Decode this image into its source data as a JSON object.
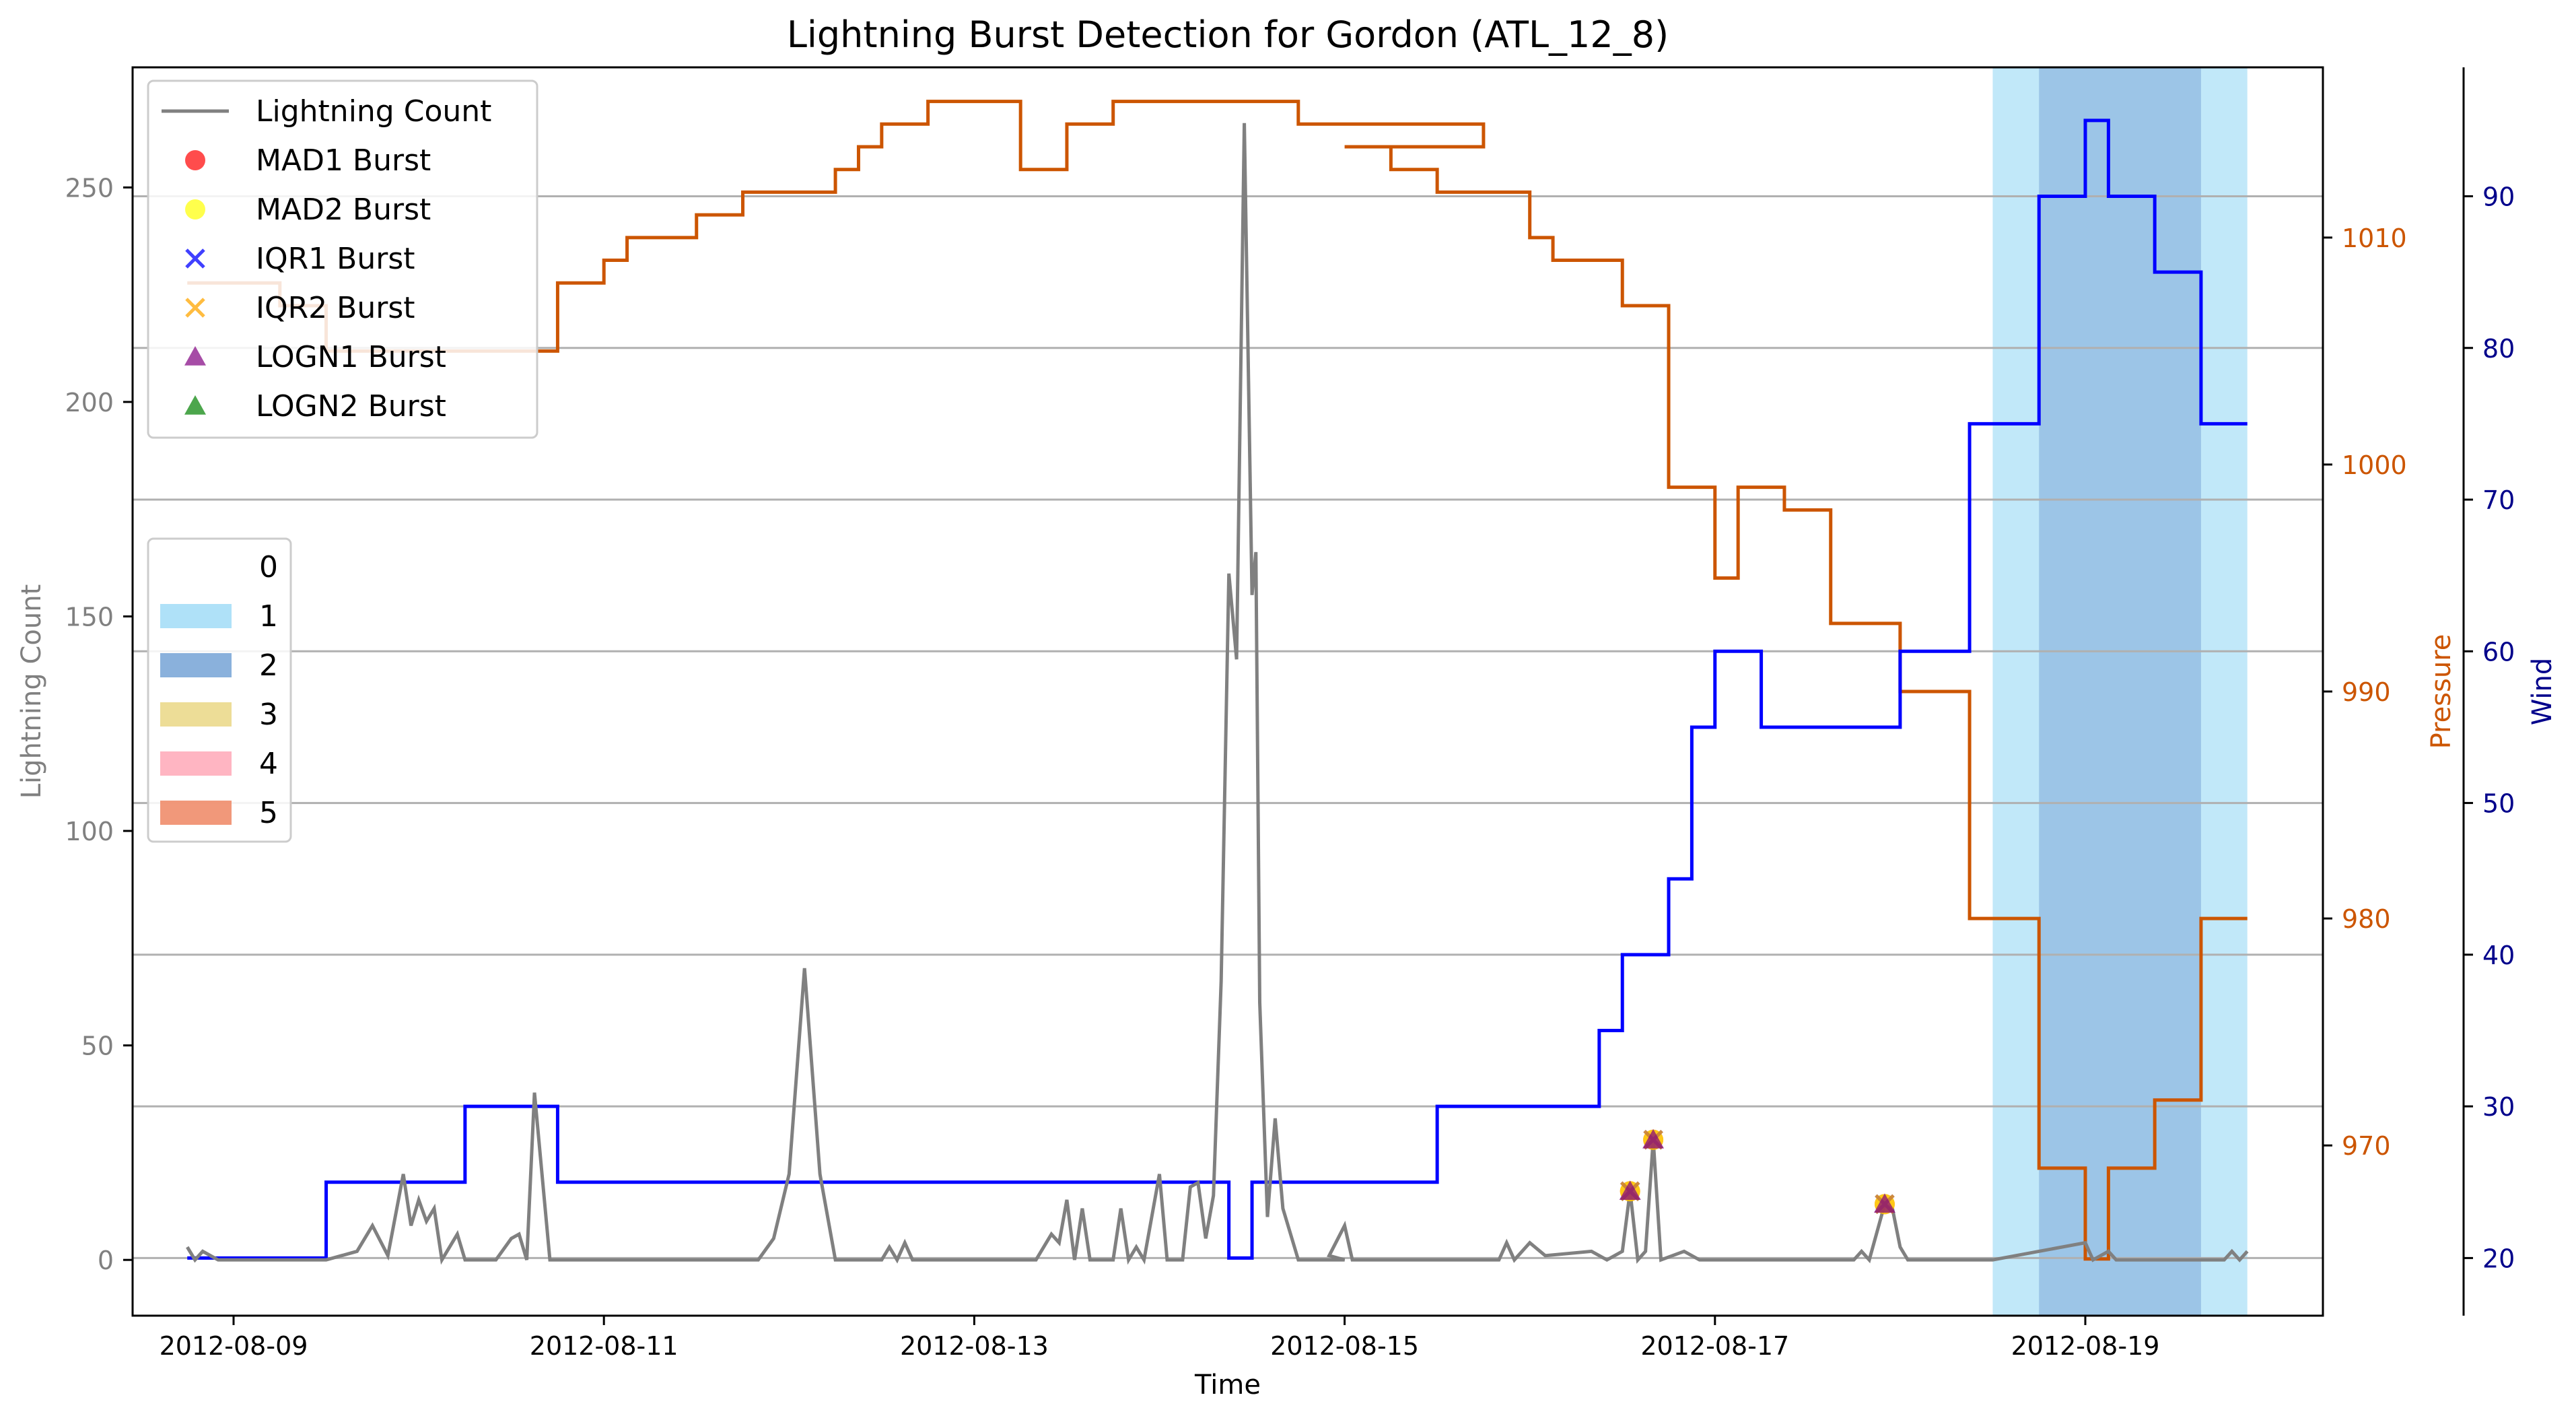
{
  "chart_data": {
    "type": "line",
    "title": "Lightning Burst Detection for Gordon (ATL_12_8)",
    "xlabel": "Time",
    "ylabel_left": "Lightning Count",
    "ylabel_pressure": "Pressure",
    "ylabel_wind": "Wind",
    "x_range": [
      "2012-08-08",
      "2012-08-20"
    ],
    "x_ticks": [
      "2012-08-09",
      "2012-08-11",
      "2012-08-13",
      "2012-08-15",
      "2012-08-17",
      "2012-08-19"
    ],
    "ylim_count": [
      -13,
      278
    ],
    "yticks_count": [
      0,
      50,
      100,
      150,
      200,
      250
    ],
    "ylim_pressure": [
      962.5,
      1017.5
    ],
    "yticks_pressure": [
      970,
      980,
      990,
      1000,
      1010
    ],
    "ylim_wind": [
      16.2,
      98.5
    ],
    "yticks_wind": [
      20,
      30,
      40,
      50,
      60,
      70,
      80,
      90
    ],
    "grid": "horizontal lines at wind ticks",
    "colors": {
      "lightning": "#808080",
      "pressure": "#cc5500",
      "wind": "#0000ff",
      "count_axis": "#808080",
      "pressure_axis": "#cc5500",
      "wind_axis": "#00008b",
      "category_0": "#ffffff",
      "category_1": "#a6def7",
      "category_2": "#7da8d8",
      "category_3": "#ebd98c",
      "category_4": "#ffadbb",
      "category_5": "#ef8d6b",
      "mad1": "#ff0000",
      "mad2": "#ffff00",
      "iqr1": "#0000ff",
      "iqr2": "#ffa500",
      "logn1": "#800080",
      "logn2": "#008000"
    },
    "legend_markers": {
      "position": "top-left",
      "entries": [
        "Lightning Count",
        "MAD1 Burst",
        "MAD2 Burst",
        "IQR1 Burst",
        "IQR2 Burst",
        "LOGN1 Burst",
        "LOGN2 Burst"
      ]
    },
    "legend_category": {
      "position": "center-left",
      "entries": [
        "0",
        "1",
        "2",
        "3",
        "4",
        "5"
      ]
    },
    "category_spans": [
      {
        "category": 1,
        "start": "2012-08-18 12:00",
        "end": "2012-08-19 21:00"
      },
      {
        "category": 2,
        "start": "2012-08-18 18:00",
        "end": "2012-08-19 15:00"
      }
    ],
    "pressure_series": [
      [
        "2012-08-08 18:00",
        1008
      ],
      [
        "2012-08-09 06:00",
        1007
      ],
      [
        "2012-08-09 12:00",
        1005
      ],
      [
        "2012-08-10 18:00",
        1008
      ],
      [
        "2012-08-11 00:00",
        1009
      ],
      [
        "2012-08-11 03:00",
        1010
      ],
      [
        "2012-08-11 12:00",
        1011
      ],
      [
        "2012-08-11 18:00",
        1012
      ],
      [
        "2012-08-12 06:00",
        1013
      ],
      [
        "2012-08-12 09:00",
        1014
      ],
      [
        "2012-08-12 12:00",
        1015
      ],
      [
        "2012-08-12 18:00",
        1016
      ],
      [
        "2012-08-13 06:00",
        1013
      ],
      [
        "2012-08-13 12:00",
        1015
      ],
      [
        "2012-08-13 18:00",
        1016
      ],
      [
        "2012-08-14 18:00",
        1015
      ],
      [
        "2012-08-15 18:00",
        1014
      ],
      [
        "2012-08-15 18:00",
        1014
      ],
      [
        "2012-08-15 00:00",
        1014
      ],
      [
        "2012-08-15 06:00",
        1013
      ],
      [
        "2012-08-15 12:00",
        1012
      ],
      [
        "2012-08-16 00:00",
        1010
      ],
      [
        "2012-08-16 03:00",
        1009
      ],
      [
        "2012-08-16 12:00",
        1007
      ],
      [
        "2012-08-16 18:00",
        999
      ],
      [
        "2012-08-17 00:00",
        995
      ],
      [
        "2012-08-17 03:00",
        999
      ],
      [
        "2012-08-17 09:00",
        998
      ],
      [
        "2012-08-17 15:00",
        993
      ],
      [
        "2012-08-18 00:00",
        990
      ],
      [
        "2012-08-18 09:00",
        980
      ],
      [
        "2012-08-18 18:00",
        969
      ],
      [
        "2012-08-19 00:00",
        965
      ],
      [
        "2012-08-19 03:00",
        969
      ],
      [
        "2012-08-19 09:00",
        972
      ],
      [
        "2012-08-19 15:00",
        980
      ],
      [
        "2012-08-19 21:00",
        980
      ]
    ],
    "wind_series": [
      [
        "2012-08-08 18:00",
        20
      ],
      [
        "2012-08-09 12:00",
        25
      ],
      [
        "2012-08-10 06:00",
        30
      ],
      [
        "2012-08-10 18:00",
        25
      ],
      [
        "2012-08-14 09:00",
        20
      ],
      [
        "2012-08-14 12:00",
        25
      ],
      [
        "2012-08-15 12:00",
        30
      ],
      [
        "2012-08-16 09:00",
        35
      ],
      [
        "2012-08-16 12:00",
        40
      ],
      [
        "2012-08-16 18:00",
        45
      ],
      [
        "2012-08-16 21:00",
        55
      ],
      [
        "2012-08-17 00:00",
        60
      ],
      [
        "2012-08-17 06:00",
        55
      ],
      [
        "2012-08-18 00:00",
        60
      ],
      [
        "2012-08-18 09:00",
        75
      ],
      [
        "2012-08-18 18:00",
        90
      ],
      [
        "2012-08-19 00:00",
        95
      ],
      [
        "2012-08-19 03:00",
        90
      ],
      [
        "2012-08-19 09:00",
        85
      ],
      [
        "2012-08-19 15:00",
        75
      ],
      [
        "2012-08-19 21:00",
        75
      ]
    ],
    "lightning_series": [
      [
        "2012-08-08 18:00",
        3
      ],
      [
        "2012-08-08 19:00",
        0
      ],
      [
        "2012-08-08 20:00",
        2
      ],
      [
        "2012-08-08 22:00",
        0
      ],
      [
        "2012-08-09 12:00",
        0
      ],
      [
        "2012-08-09 16:00",
        2
      ],
      [
        "2012-08-09 18:00",
        8
      ],
      [
        "2012-08-09 20:00",
        1
      ],
      [
        "2012-08-09 22:00",
        20
      ],
      [
        "2012-08-09 23:00",
        8
      ],
      [
        "2012-08-10 00:00",
        14
      ],
      [
        "2012-08-10 01:00",
        9
      ],
      [
        "2012-08-10 02:00",
        12
      ],
      [
        "2012-08-10 03:00",
        0
      ],
      [
        "2012-08-10 05:00",
        6
      ],
      [
        "2012-08-10 06:00",
        0
      ],
      [
        "2012-08-10 10:00",
        0
      ],
      [
        "2012-08-10 12:00",
        5
      ],
      [
        "2012-08-10 13:00",
        6
      ],
      [
        "2012-08-10 14:00",
        0
      ],
      [
        "2012-08-10 15:00",
        39
      ],
      [
        "2012-08-10 17:00",
        0
      ],
      [
        "2012-08-11 00:00",
        0
      ],
      [
        "2012-08-11 12:00",
        0
      ],
      [
        "2012-08-11 20:00",
        0
      ],
      [
        "2012-08-11 22:00",
        5
      ],
      [
        "2012-08-12 00:00",
        20
      ],
      [
        "2012-08-12 02:00",
        68
      ],
      [
        "2012-08-12 04:00",
        20
      ],
      [
        "2012-08-12 06:00",
        0
      ],
      [
        "2012-08-12 12:00",
        0
      ],
      [
        "2012-08-12 13:00",
        3
      ],
      [
        "2012-08-12 14:00",
        0
      ],
      [
        "2012-08-12 15:00",
        4
      ],
      [
        "2012-08-12 16:00",
        0
      ],
      [
        "2012-08-13 08:00",
        0
      ],
      [
        "2012-08-13 10:00",
        6
      ],
      [
        "2012-08-13 11:00",
        4
      ],
      [
        "2012-08-13 12:00",
        14
      ],
      [
        "2012-08-13 13:00",
        0
      ],
      [
        "2012-08-13 14:00",
        12
      ],
      [
        "2012-08-13 15:00",
        0
      ],
      [
        "2012-08-13 18:00",
        0
      ],
      [
        "2012-08-13 19:00",
        12
      ],
      [
        "2012-08-13 20:00",
        0
      ],
      [
        "2012-08-13 21:00",
        3
      ],
      [
        "2012-08-13 22:00",
        0
      ],
      [
        "2012-08-14 00:00",
        20
      ],
      [
        "2012-08-14 01:00",
        0
      ],
      [
        "2012-08-14 03:00",
        0
      ],
      [
        "2012-08-14 04:00",
        17
      ],
      [
        "2012-08-14 05:00",
        18
      ],
      [
        "2012-08-14 06:00",
        5
      ],
      [
        "2012-08-14 07:00",
        15
      ],
      [
        "2012-08-14 08:00",
        65
      ],
      [
        "2012-08-14 09:00",
        160
      ],
      [
        "2012-08-14 10:00",
        140
      ],
      [
        "2012-08-14 11:00",
        265
      ],
      [
        "2012-08-14 12:00",
        155
      ],
      [
        "2012-08-14 12:30",
        165
      ],
      [
        "2012-08-14 13:00",
        60
      ],
      [
        "2012-08-14 14:00",
        10
      ],
      [
        "2012-08-14 15:00",
        33
      ],
      [
        "2012-08-14 16:00",
        12
      ],
      [
        "2012-08-14 18:00",
        0
      ],
      [
        "2012-08-15 00:00",
        0
      ],
      [
        "2012-08-14 22:00",
        1
      ],
      [
        "2012-08-15 00:00",
        8
      ],
      [
        "2012-08-15 01:00",
        0
      ],
      [
        "2012-08-15 20:00",
        0
      ],
      [
        "2012-08-15 21:00",
        4
      ],
      [
        "2012-08-15 22:00",
        0
      ],
      [
        "2012-08-16 00:00",
        4
      ],
      [
        "2012-08-16 02:00",
        1
      ],
      [
        "2012-08-16 08:00",
        2
      ],
      [
        "2012-08-16 10:00",
        0
      ],
      [
        "2012-08-16 12:00",
        2
      ],
      [
        "2012-08-16 13:00",
        16
      ],
      [
        "2012-08-16 14:00",
        0
      ],
      [
        "2012-08-16 15:00",
        2
      ],
      [
        "2012-08-16 16:00",
        28
      ],
      [
        "2012-08-16 17:00",
        0
      ],
      [
        "2012-08-16 20:00",
        2
      ],
      [
        "2012-08-16 22:00",
        0
      ],
      [
        "2012-08-17 18:00",
        0
      ],
      [
        "2012-08-17 19:00",
        2
      ],
      [
        "2012-08-17 20:00",
        0
      ],
      [
        "2012-08-17 22:00",
        13
      ],
      [
        "2012-08-17 23:00",
        12
      ],
      [
        "2012-08-18 00:00",
        3
      ],
      [
        "2012-08-18 01:00",
        0
      ],
      [
        "2012-08-18 12:00",
        0
      ],
      [
        "2012-08-19 00:00",
        4
      ],
      [
        "2012-08-19 01:00",
        0
      ],
      [
        "2012-08-19 03:00",
        2
      ],
      [
        "2012-08-19 04:00",
        0
      ],
      [
        "2012-08-19 18:00",
        0
      ],
      [
        "2012-08-19 19:00",
        2
      ],
      [
        "2012-08-19 20:00",
        0
      ],
      [
        "2012-08-19 21:00",
        2
      ]
    ],
    "bursts": [
      {
        "time": "2012-08-16 13:00",
        "count": 16,
        "detectors": [
          "MAD1",
          "MAD2",
          "IQR1",
          "IQR2",
          "LOGN1"
        ]
      },
      {
        "time": "2012-08-16 16:00",
        "count": 28,
        "detectors": [
          "MAD1",
          "MAD2",
          "IQR1",
          "IQR2",
          "LOGN1"
        ]
      },
      {
        "time": "2012-08-17 22:00",
        "count": 13,
        "detectors": [
          "MAD1",
          "MAD2",
          "IQR1",
          "IQR2",
          "LOGN1"
        ]
      }
    ]
  }
}
